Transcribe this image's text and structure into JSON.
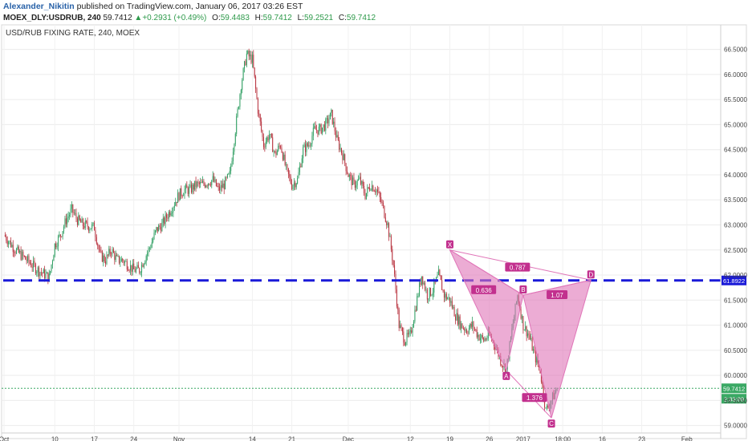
{
  "header": {
    "author": "Alexander_Nikitin",
    "published_text": "published on TradingView.com, January 06, 2017 03:26 EST",
    "symbol": "MOEX_DLY:USDRUB, 240",
    "last": "59.7412",
    "change_arrow": "▲",
    "change": "+0.2931 (+0.49%)",
    "o_label": "O:",
    "o_value": "59.4483",
    "h_label": "H:",
    "h_value": "59.7412",
    "l_label": "L:",
    "l_value": "59.2521",
    "c_label": "C:",
    "c_value": "59.7412"
  },
  "chart_data": {
    "type": "candlestick",
    "title": "USD/RUB FIXING RATE, 240, MOEX",
    "xlabel": "",
    "ylabel": "",
    "ylim": [
      58.85,
      66.75
    ],
    "y_ticks": [
      "59.0000",
      "59.5000",
      "60.0000",
      "60.5000",
      "61.0000",
      "61.5000",
      "62.0000",
      "62.5000",
      "63.0000",
      "63.5000",
      "64.0000",
      "64.5000",
      "65.0000",
      "65.5000",
      "66.0000",
      "66.5000"
    ],
    "x_ticks": [
      {
        "label": "Oct",
        "t": 0
      },
      {
        "label": "10",
        "t": 9
      },
      {
        "label": "17",
        "t": 16
      },
      {
        "label": "24",
        "t": 23
      },
      {
        "label": "Nov",
        "t": 31
      },
      {
        "label": "14",
        "t": 44
      },
      {
        "label": "21",
        "t": 51
      },
      {
        "label": "Dec",
        "t": 61
      },
      {
        "label": "12",
        "t": 72
      },
      {
        "label": "19",
        "t": 79
      },
      {
        "label": "26",
        "t": 86
      },
      {
        "label": "2017",
        "t": 92
      },
      {
        "label": "18:00",
        "t": 99
      },
      {
        "label": "16",
        "t": 106
      },
      {
        "label": "23",
        "t": 113
      },
      {
        "label": "Feb",
        "t": 121
      }
    ],
    "x_range": [
      0,
      127
    ],
    "price_path": [
      [
        0,
        62.8
      ],
      [
        2,
        62.5
      ],
      [
        4,
        62.3
      ],
      [
        6,
        62.1
      ],
      [
        8,
        61.95
      ],
      [
        9,
        62.6
      ],
      [
        10,
        62.8
      ],
      [
        11,
        63.1
      ],
      [
        12,
        63.3
      ],
      [
        13,
        63.1
      ],
      [
        14,
        63.0
      ],
      [
        16,
        62.95
      ],
      [
        17,
        62.4
      ],
      [
        18,
        62.3
      ],
      [
        19,
        62.5
      ],
      [
        20,
        62.3
      ],
      [
        21,
        62.3
      ],
      [
        22,
        62.2
      ],
      [
        23,
        62.1
      ],
      [
        24,
        62.1
      ],
      [
        26,
        62.6
      ],
      [
        27,
        62.9
      ],
      [
        28,
        63.0
      ],
      [
        29,
        63.2
      ],
      [
        30,
        63.4
      ],
      [
        31,
        63.6
      ],
      [
        32,
        63.7
      ],
      [
        33,
        63.7
      ],
      [
        34,
        63.8
      ],
      [
        35,
        63.8
      ],
      [
        36,
        63.85
      ],
      [
        37,
        63.9
      ],
      [
        38,
        63.7
      ],
      [
        39,
        63.8
      ],
      [
        40,
        64.0
      ],
      [
        41,
        64.9
      ],
      [
        42,
        65.8
      ],
      [
        43,
        66.4
      ],
      [
        44,
        66.3
      ],
      [
        45,
        65.3
      ],
      [
        46,
        64.6
      ],
      [
        47,
        64.8
      ],
      [
        48,
        64.4
      ],
      [
        49,
        64.6
      ],
      [
        50,
        64.1
      ],
      [
        51,
        63.8
      ],
      [
        52,
        63.9
      ],
      [
        53,
        64.5
      ],
      [
        54,
        64.6
      ],
      [
        55,
        64.9
      ],
      [
        56,
        64.9
      ],
      [
        57,
        65.0
      ],
      [
        58,
        65.2
      ],
      [
        59,
        64.7
      ],
      [
        60,
        64.4
      ],
      [
        61,
        64.0
      ],
      [
        62,
        63.8
      ],
      [
        63,
        63.9
      ],
      [
        64,
        63.6
      ],
      [
        65,
        63.8
      ],
      [
        66,
        63.7
      ],
      [
        67,
        63.4
      ],
      [
        68,
        63.0
      ],
      [
        69,
        62.2
      ],
      [
        70,
        61.0
      ],
      [
        71,
        60.7
      ],
      [
        72,
        60.8
      ],
      [
        73,
        61.4
      ],
      [
        74,
        62.0
      ],
      [
        75,
        61.6
      ],
      [
        76,
        61.7
      ],
      [
        77,
        62.0
      ],
      [
        78,
        61.6
      ],
      [
        79,
        61.5
      ],
      [
        80,
        61.2
      ],
      [
        81,
        61.0
      ],
      [
        82,
        60.9
      ],
      [
        83,
        61.0
      ],
      [
        84,
        60.8
      ],
      [
        85,
        60.7
      ],
      [
        86,
        60.8
      ],
      [
        87,
        60.6
      ],
      [
        88,
        60.3
      ],
      [
        89,
        60.1
      ],
      [
        90,
        60.9
      ],
      [
        91,
        61.6
      ],
      [
        92,
        61.0
      ],
      [
        93,
        60.8
      ],
      [
        94,
        60.4
      ],
      [
        95,
        60.1
      ],
      [
        96,
        59.3
      ],
      [
        97,
        59.5
      ],
      [
        98,
        59.74
      ]
    ],
    "pattern": {
      "name": "Bat",
      "color": "#e075b8",
      "points": [
        {
          "label": "X",
          "t": 79,
          "price": 62.5
        },
        {
          "label": "A",
          "t": 89,
          "price": 60.1
        },
        {
          "label": "B",
          "t": 92,
          "price": 61.6
        },
        {
          "label": "C",
          "t": 97,
          "price": 59.15
        },
        {
          "label": "D",
          "t": 104,
          "price": 61.9
        }
      ],
      "ratios": [
        {
          "label": "0.636",
          "t": 85,
          "price": 61.7
        },
        {
          "label": "0.787",
          "t": 91,
          "price": 62.15
        },
        {
          "label": "1.07",
          "t": 98,
          "price": 61.6
        },
        {
          "label": "1.376",
          "t": 94,
          "price": 59.55
        }
      ]
    },
    "levels": [
      {
        "name": "resistance",
        "price": 61.8922,
        "label": "61.8922",
        "color": "#1a1ad8",
        "style": "dashed"
      },
      {
        "name": "last-price",
        "price": 59.7412,
        "label": "59.7412",
        "color": "#3aa864",
        "style": "dotted"
      }
    ],
    "countdown": "2:33:09",
    "grid": true
  }
}
